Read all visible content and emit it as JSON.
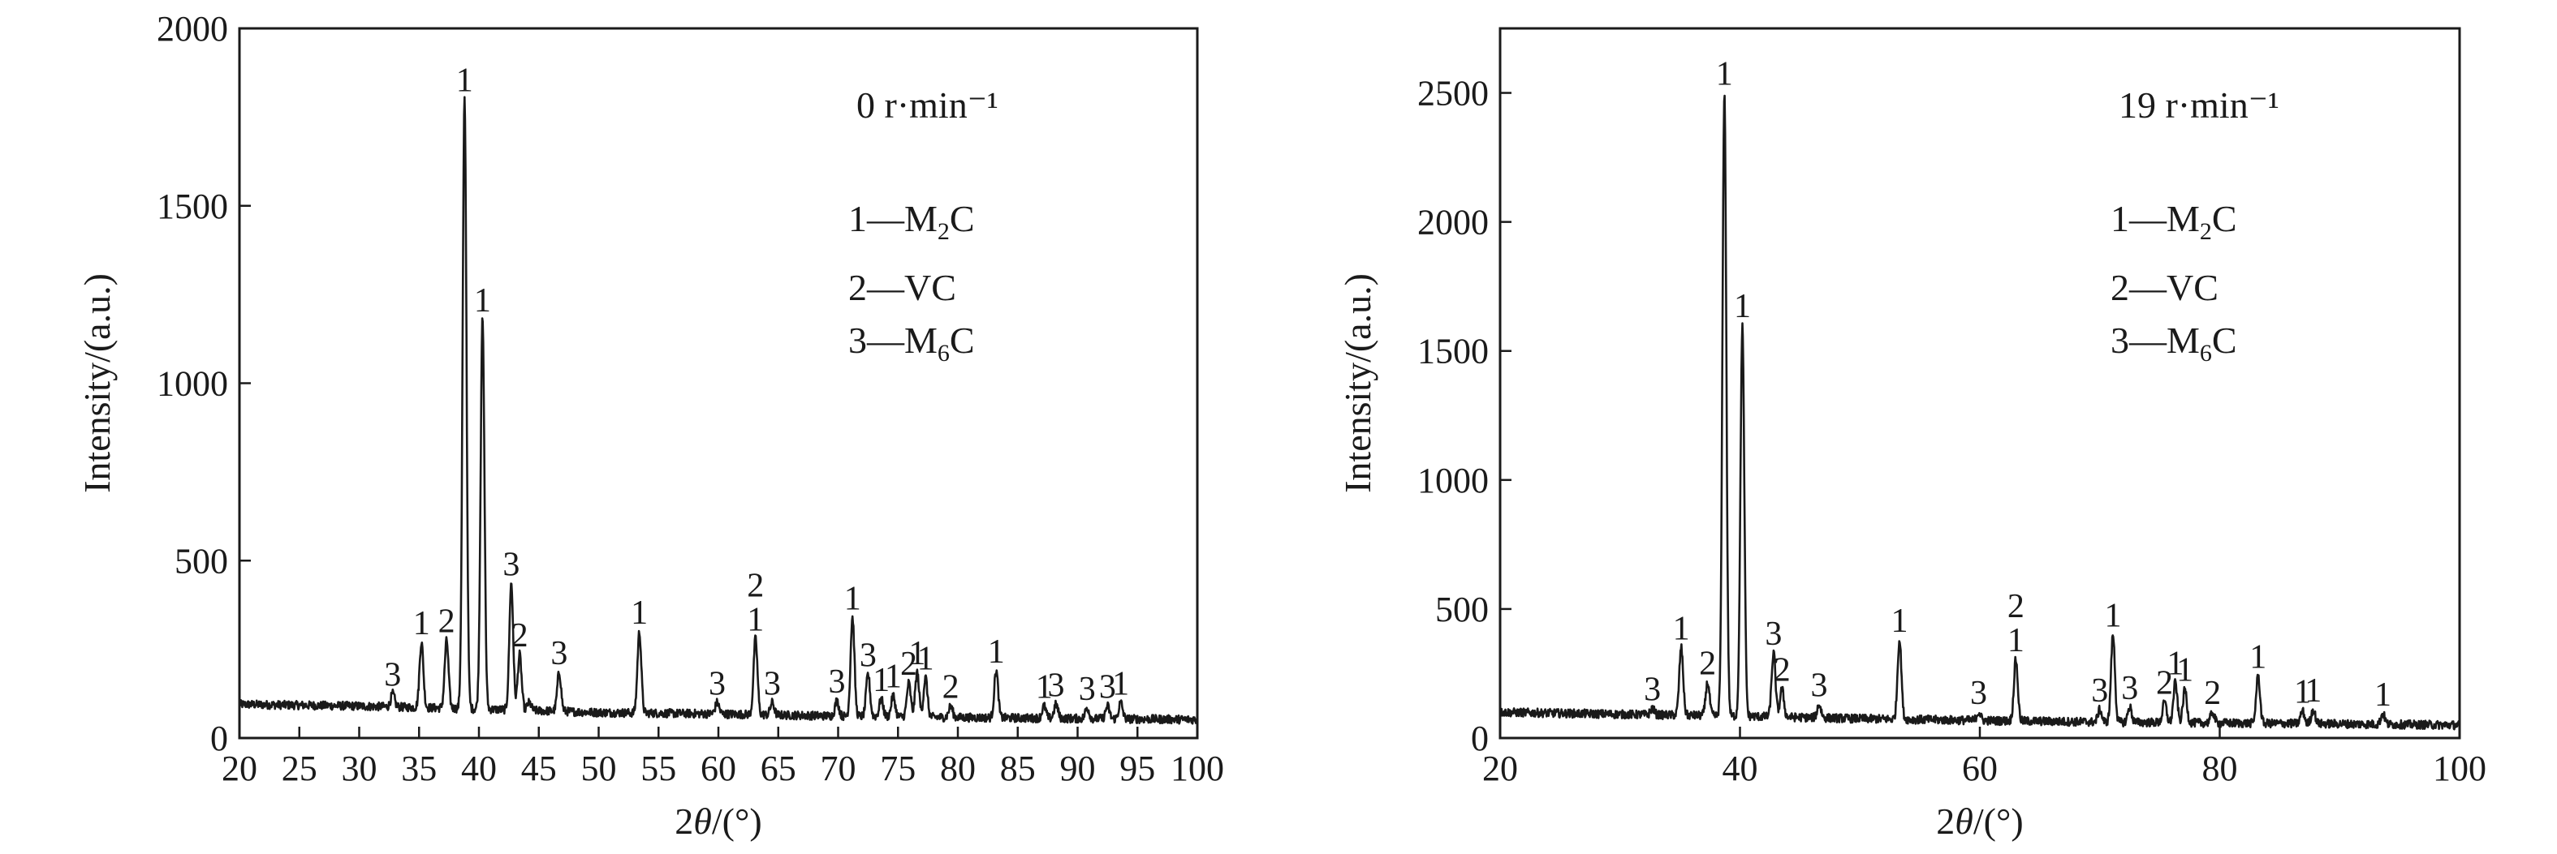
{
  "colors": {
    "line": "#1a1a1a",
    "background": "#ffffff"
  },
  "chart_data": [
    {
      "type": "line",
      "rpm_label": "0 r·min⁻¹",
      "legend": [
        {
          "key": "1",
          "sep": "—",
          "name": "M",
          "sub": "2",
          "end": "C"
        },
        {
          "key": "2",
          "sep": "—",
          "name": "VC",
          "sub": "",
          "end": ""
        },
        {
          "key": "3",
          "sep": "—",
          "name": "M",
          "sub": "6",
          "end": "C"
        }
      ],
      "xlabel": {
        "pre": "2",
        "italic": "θ",
        "post": "/(°)"
      },
      "ylabel": "Intensity/(a.u.)",
      "xlim": [
        20,
        100
      ],
      "ylim": [
        0,
        2000
      ],
      "xticks": [
        20,
        25,
        30,
        35,
        40,
        45,
        50,
        55,
        60,
        65,
        70,
        75,
        80,
        85,
        90,
        95,
        100
      ],
      "yticks": [
        0,
        500,
        1000,
        1500,
        2000
      ],
      "baseline": {
        "x": [
          20,
          30,
          40,
          50,
          60,
          70,
          80,
          90,
          100
        ],
        "y": [
          95,
          90,
          82,
          72,
          68,
          62,
          58,
          55,
          52
        ]
      },
      "peaks": [
        {
          "x": 32.8,
          "y": 125,
          "label": "3"
        },
        {
          "x": 35.2,
          "y": 270,
          "label": "1"
        },
        {
          "x": 37.3,
          "y": 275,
          "label": "2"
        },
        {
          "x": 38.8,
          "y": 1800,
          "label": "1"
        },
        {
          "x": 40.3,
          "y": 1180,
          "label": "1"
        },
        {
          "x": 42.7,
          "y": 435,
          "label": "3"
        },
        {
          "x": 43.4,
          "y": 235,
          "label": "2"
        },
        {
          "x": 44.2,
          "y": 100,
          "label": ""
        },
        {
          "x": 46.7,
          "y": 185,
          "label": "3"
        },
        {
          "x": 53.4,
          "y": 300,
          "label": "1"
        },
        {
          "x": 59.9,
          "y": 100,
          "label": "3"
        },
        {
          "x": 63.1,
          "y": 280,
          "label": "2 1"
        },
        {
          "x": 64.5,
          "y": 100,
          "label": "3"
        },
        {
          "x": 69.9,
          "y": 105,
          "label": "3"
        },
        {
          "x": 71.2,
          "y": 340,
          "label": "1"
        },
        {
          "x": 72.5,
          "y": 180,
          "label": "3"
        },
        {
          "x": 73.6,
          "y": 110,
          "label": "1"
        },
        {
          "x": 74.6,
          "y": 120,
          "label": "1"
        },
        {
          "x": 75.9,
          "y": 155,
          "label": "2"
        },
        {
          "x": 76.6,
          "y": 185,
          "label": "1"
        },
        {
          "x": 77.3,
          "y": 170,
          "label": "1"
        },
        {
          "x": 79.4,
          "y": 90,
          "label": "2"
        },
        {
          "x": 83.2,
          "y": 190,
          "label": "1"
        },
        {
          "x": 87.2,
          "y": 90,
          "label": "1"
        },
        {
          "x": 88.2,
          "y": 95,
          "label": "3"
        },
        {
          "x": 90.8,
          "y": 85,
          "label": "3"
        },
        {
          "x": 92.5,
          "y": 90,
          "label": "3"
        },
        {
          "x": 93.6,
          "y": 100,
          "label": "1"
        }
      ]
    },
    {
      "type": "line",
      "rpm_label": "19 r·min⁻¹",
      "legend": [
        {
          "key": "1",
          "sep": "—",
          "name": "M",
          "sub": "2",
          "end": "C"
        },
        {
          "key": "2",
          "sep": "—",
          "name": "VC",
          "sub": "",
          "end": ""
        },
        {
          "key": "3",
          "sep": "—",
          "name": "M",
          "sub": "6",
          "end": "C"
        }
      ],
      "xlabel": {
        "pre": "2",
        "italic": "θ",
        "post": "/(°)"
      },
      "ylabel": "Intensity/(a.u.)",
      "xlim": [
        20,
        100
      ],
      "ylim": [
        0,
        2750
      ],
      "xticks": [
        20,
        40,
        60,
        80,
        100
      ],
      "yticks": [
        0,
        500,
        1000,
        1500,
        2000,
        2500
      ],
      "baseline": {
        "x": [
          20,
          30,
          40,
          50,
          60,
          70,
          80,
          90,
          100
        ],
        "y": [
          100,
          92,
          85,
          75,
          68,
          62,
          58,
          55,
          50
        ]
      },
      "peaks": [
        {
          "x": 32.7,
          "y": 115,
          "label": "3"
        },
        {
          "x": 35.1,
          "y": 350,
          "label": "1"
        },
        {
          "x": 37.3,
          "y": 215,
          "label": "2"
        },
        {
          "x": 38.7,
          "y": 2500,
          "label": "1"
        },
        {
          "x": 40.2,
          "y": 1600,
          "label": "1"
        },
        {
          "x": 42.8,
          "y": 330,
          "label": "3"
        },
        {
          "x": 43.5,
          "y": 190,
          "label": "2"
        },
        {
          "x": 46.6,
          "y": 130,
          "label": "3"
        },
        {
          "x": 53.3,
          "y": 380,
          "label": "1"
        },
        {
          "x": 59.9,
          "y": 100,
          "label": "3"
        },
        {
          "x": 63.0,
          "y": 305,
          "label": "2 1"
        },
        {
          "x": 70.0,
          "y": 110,
          "label": "3"
        },
        {
          "x": 71.1,
          "y": 400,
          "label": "1"
        },
        {
          "x": 72.5,
          "y": 120,
          "label": "3"
        },
        {
          "x": 75.4,
          "y": 140,
          "label": "2"
        },
        {
          "x": 76.3,
          "y": 215,
          "label": "1"
        },
        {
          "x": 77.1,
          "y": 190,
          "label": "1"
        },
        {
          "x": 79.4,
          "y": 100,
          "label": "2"
        },
        {
          "x": 83.2,
          "y": 240,
          "label": "1"
        },
        {
          "x": 86.9,
          "y": 105,
          "label": "1"
        },
        {
          "x": 87.8,
          "y": 110,
          "label": "1"
        },
        {
          "x": 93.6,
          "y": 95,
          "label": "1"
        }
      ]
    }
  ]
}
